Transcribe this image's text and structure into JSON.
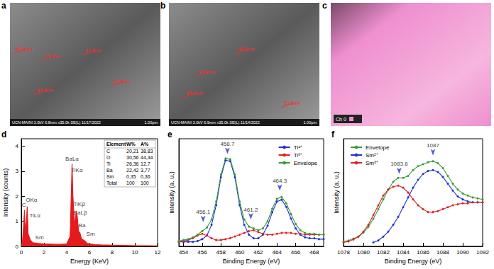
{
  "images": [
    {
      "panel": "a",
      "labels": [
        "56.8nm",
        "75.4nm",
        "67.9nm",
        "61.6nm",
        "63.9nm"
      ],
      "footer": "UCN-MAINI 3.0kV 6.8mm x35.0k SE(L) 11/17/2022",
      "scale_bar": "1.00μm"
    },
    {
      "panel": "b",
      "labels": [
        "59.9nm",
        "73.1nm",
        "55.9nm",
        "69.3nm"
      ],
      "footer": "UCN-MAINI 3.0kV 6.9mm x35.0k SE(L) 11/14/2022",
      "scale_bar": "1.00μm"
    },
    {
      "panel": "c",
      "channel": "Ch 0",
      "color": "#ef8fcf"
    }
  ],
  "chart_data": [
    {
      "panel": "d",
      "type": "area",
      "x_label": "Energy (KeV)",
      "y_label": "Intensity (counts)",
      "xlim": [
        0,
        12
      ],
      "xticks": [
        0,
        2,
        4,
        6,
        8,
        10,
        12
      ],
      "ylim": [
        0,
        4.3
      ],
      "yticks": [
        0,
        1,
        2,
        3,
        4
      ],
      "grid": false,
      "series": [
        {
          "color": "#e41a1c",
          "x": [
            0,
            0.1,
            0.2,
            0.28,
            0.35,
            0.45,
            0.52,
            0.6,
            0.8,
            1.0,
            1.5,
            2,
            2.5,
            3,
            3.5,
            4,
            4.3,
            4.47,
            4.55,
            4.7,
            4.83,
            4.93,
            5.05,
            5.16,
            5.3,
            5.5,
            5.64,
            5.8,
            6,
            6.5,
            7,
            8,
            9,
            10,
            11,
            12
          ],
          "values": [
            0,
            0.2,
            0.8,
            1.45,
            0.6,
            1.0,
            1.6,
            0.5,
            0.25,
            0.15,
            0.12,
            0.1,
            0.09,
            0.08,
            0.08,
            0.1,
            0.4,
            3.3,
            2.0,
            0.8,
            1.4,
            1.2,
            0.6,
            0.55,
            0.3,
            0.25,
            0.2,
            0.12,
            0.1,
            0.07,
            0.06,
            0.05,
            0.04,
            0.03,
            0.03,
            0.02
          ]
        }
      ],
      "annotations": [
        {
          "text": "C",
          "x": 0.22,
          "y": 1.5
        },
        {
          "text": "OKα",
          "x": 0.9,
          "y": 1.7
        },
        {
          "text": "TiLα",
          "x": 1.2,
          "y": 1.1
        },
        {
          "text": "Sm",
          "x": 1.6,
          "y": 0.2
        },
        {
          "text": "BaLα",
          "x": 4.47,
          "y": 3.35
        },
        {
          "text": "TiKα",
          "x": 4.9,
          "y": 2.9
        },
        {
          "text": "TiKβ",
          "x": 5.1,
          "y": 1.55
        },
        {
          "text": "BaLβ",
          "x": 5.2,
          "y": 1.2
        },
        {
          "text": "Ba",
          "x": 5.35,
          "y": 0.7
        },
        {
          "text": "Sm",
          "x": 6.1,
          "y": 0.35
        }
      ],
      "table": {
        "header": [
          "Element",
          "W%",
          "A%"
        ],
        "rows": [
          [
            "C",
            "20,21",
            "38,83"
          ],
          [
            "O",
            "30,56",
            "44,34"
          ],
          [
            "Ti",
            "26,36",
            "12,7"
          ],
          [
            "Ba",
            "22,42",
            "3,77"
          ],
          [
            "Sm",
            "0,35",
            "0,36"
          ],
          [
            "Total",
            "100",
            "100"
          ]
        ]
      }
    },
    {
      "panel": "e",
      "type": "line",
      "x_label": "Binding Energy (eV)",
      "y_label": "Intensity (a. u.)",
      "xlim": [
        453.5,
        469
      ],
      "xticks": [
        454,
        456,
        458,
        460,
        462,
        464,
        466,
        468
      ],
      "ylim": [
        0,
        1.2
      ],
      "tick_labels": "x",
      "grid": false,
      "legend": "upper right",
      "x": [
        453.5,
        454,
        454.5,
        455,
        455.5,
        456,
        456.5,
        457,
        457.5,
        458,
        458.5,
        459,
        459.5,
        460,
        460.5,
        461,
        461.5,
        462,
        462.5,
        463,
        463.5,
        464,
        464.5,
        465,
        465.5,
        466,
        466.5,
        467,
        467.5,
        468,
        468.5,
        469
      ],
      "series": [
        {
          "name": "Ti⁴⁺",
          "color": "#2030d0",
          "marker": "circle",
          "values": [
            0.05,
            0.05,
            0.05,
            0.05,
            0.06,
            0.08,
            0.12,
            0.24,
            0.46,
            0.77,
            0.96,
            0.95,
            0.77,
            0.46,
            0.24,
            0.13,
            0.09,
            0.09,
            0.13,
            0.23,
            0.38,
            0.5,
            0.52,
            0.44,
            0.31,
            0.2,
            0.13,
            0.1,
            0.09,
            0.09,
            0.08,
            0.08
          ]
        },
        {
          "name": "Ti³⁺",
          "color": "#e02020",
          "marker": "circle",
          "values": [
            0.05,
            0.06,
            0.07,
            0.09,
            0.12,
            0.14,
            0.12,
            0.09,
            0.07,
            0.07,
            0.08,
            0.09,
            0.11,
            0.13,
            0.15,
            0.17,
            0.18,
            0.16,
            0.14,
            0.13,
            0.13,
            0.14,
            0.15,
            0.15,
            0.15,
            0.14,
            0.14,
            0.13,
            0.13,
            0.13,
            0.13,
            0.13
          ]
        },
        {
          "name": "Envelope",
          "color": "#3a9a3a",
          "marker": "circle",
          "values": [
            0.06,
            0.07,
            0.08,
            0.1,
            0.13,
            0.17,
            0.21,
            0.3,
            0.5,
            0.8,
            0.98,
            0.97,
            0.8,
            0.5,
            0.3,
            0.22,
            0.2,
            0.18,
            0.2,
            0.28,
            0.42,
            0.53,
            0.55,
            0.48,
            0.36,
            0.25,
            0.18,
            0.15,
            0.14,
            0.14,
            0.13,
            0.13
          ]
        }
      ],
      "annotations": [
        {
          "text": "456.1",
          "x": 456.1,
          "y": 0.27,
          "marker": "arrow"
        },
        {
          "text": "458.7",
          "x": 458.7,
          "y": 1.03,
          "marker": "arrow"
        },
        {
          "text": "461.2",
          "x": 461.2,
          "y": 0.3,
          "marker": "arrow"
        },
        {
          "text": "464.3",
          "x": 464.3,
          "y": 0.62,
          "marker": "arrow"
        }
      ]
    },
    {
      "panel": "f",
      "type": "line",
      "x_label": "Binding Energy (eV)",
      "y_label": "Intensity (a. u.)",
      "xlim": [
        1078,
        1092
      ],
      "xticks": [
        1078,
        1080,
        1082,
        1084,
        1086,
        1088,
        1090,
        1092
      ],
      "ylim": [
        0,
        1.1
      ],
      "tick_labels": "x",
      "grid": false,
      "legend": "upper left",
      "x": [
        1078,
        1078.5,
        1079,
        1079.5,
        1080,
        1080.5,
        1081,
        1081.5,
        1082,
        1082.5,
        1083,
        1083.5,
        1084,
        1084.5,
        1085,
        1085.5,
        1086,
        1086.5,
        1087,
        1087.5,
        1088,
        1088.5,
        1089,
        1089.5,
        1090,
        1090.5,
        1091,
        1091.5,
        1092
      ],
      "series": [
        {
          "name": "Envelope",
          "color": "#3a9a3a",
          "marker": "circle",
          "values": [
            0.05,
            0.06,
            0.08,
            0.1,
            0.14,
            0.2,
            0.28,
            0.38,
            0.48,
            0.58,
            0.66,
            0.7,
            0.7,
            0.72,
            0.78,
            0.82,
            0.84,
            0.86,
            0.87,
            0.85,
            0.8,
            0.72,
            0.64,
            0.58,
            0.54,
            0.52,
            0.5,
            0.49,
            0.48
          ]
        },
        {
          "name": "Sm²⁺",
          "color": "#2030d0",
          "marker": "circle",
          "values": [
            null,
            null,
            null,
            null,
            null,
            null,
            0.04,
            0.06,
            0.1,
            0.15,
            0.22,
            0.3,
            0.4,
            0.5,
            0.6,
            0.68,
            0.74,
            0.77,
            0.78,
            0.76,
            0.71,
            0.64,
            0.57,
            0.51,
            0.48,
            0.46,
            0.45,
            0.45,
            0.45
          ]
        },
        {
          "name": "Sm³⁺",
          "color": "#e02020",
          "marker": "circle",
          "values": [
            0.04,
            0.05,
            0.07,
            0.1,
            0.15,
            0.22,
            0.32,
            0.42,
            0.52,
            0.58,
            0.61,
            0.62,
            0.6,
            0.55,
            0.48,
            0.42,
            0.38,
            0.35,
            0.35,
            0.36,
            0.38,
            0.4,
            0.42,
            0.43,
            0.44,
            0.44,
            0.45,
            0.45,
            0.45
          ]
        }
      ],
      "annotations": [
        {
          "text": "1083.6",
          "x": 1083.6,
          "y": 0.74,
          "marker": "arrow"
        },
        {
          "text": "1087",
          "x": 1087,
          "y": 0.93,
          "marker": "arrow"
        }
      ]
    }
  ]
}
